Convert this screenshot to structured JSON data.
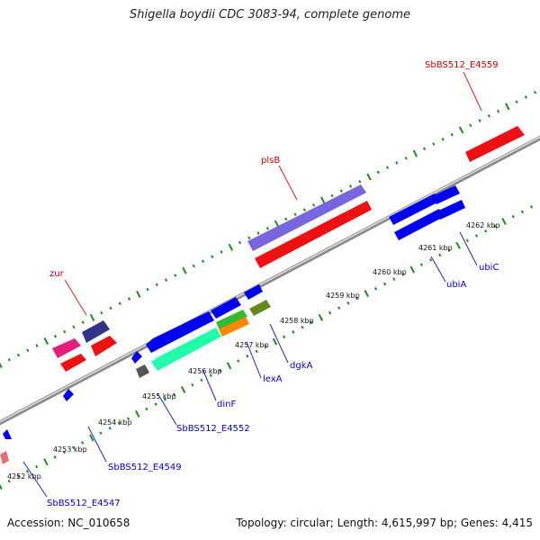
{
  "title": "Shigella boydii CDC 3083-94, complete genome",
  "footer": {
    "accession": "Accession: NC_010658",
    "summary": "Topology: circular; Length: 4,615,997 bp; Genes: 4,415"
  },
  "colors": {
    "backbone": "#a0a0a0",
    "tick": "#1f8a1f",
    "forward_label": "#cc0000",
    "reverse_label": "#0000cc"
  },
  "kbp_labels": [
    "4252 kbp",
    "4253 kbp",
    "4254 kbp",
    "4255 kbp",
    "4256 kbp",
    "4257 kbp",
    "4258 kbp",
    "4259 kbp",
    "4260 kbp",
    "4261 kbp",
    "4262 kbp"
  ],
  "forward_gene_labels": [
    "zur",
    "plsB",
    "SbBS512_E4559"
  ],
  "reverse_gene_labels": [
    "SbBS512_E4547",
    "SbBS512_E4549",
    "SbBS512_E4552",
    "dinF",
    "lexA",
    "dgkA",
    "ubiA",
    "ubiC"
  ]
}
